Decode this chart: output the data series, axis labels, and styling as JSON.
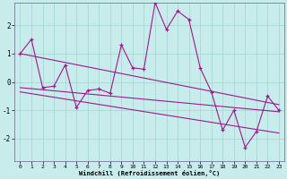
{
  "x": [
    0,
    1,
    2,
    3,
    4,
    5,
    6,
    7,
    8,
    9,
    10,
    11,
    12,
    13,
    14,
    15,
    16,
    17,
    18,
    19,
    20,
    21,
    22,
    23
  ],
  "y_main": [
    1.0,
    1.5,
    -0.2,
    -0.15,
    0.6,
    -0.9,
    -0.3,
    -0.25,
    -0.4,
    1.3,
    0.5,
    0.45,
    2.8,
    1.85,
    2.5,
    2.2,
    0.5,
    -0.35,
    -1.7,
    -1.0,
    -2.3,
    -1.75,
    -0.5,
    -1.0
  ],
  "trend1_x": [
    0,
    23
  ],
  "trend1_y": [
    1.0,
    -0.8
  ],
  "trend2_x": [
    0,
    23
  ],
  "trend2_y": [
    -0.2,
    -1.05
  ],
  "trend3_x": [
    0,
    23
  ],
  "trend3_y": [
    -0.35,
    -1.8
  ],
  "bg_color": "#c8eceb",
  "line_color": "#9b1a8c",
  "grid_color": "#a0d4d0",
  "xlabel": "Windchill (Refroidissement éolien,°C)",
  "ylim": [
    -2.8,
    2.8
  ],
  "xlim": [
    -0.5,
    23.5
  ],
  "yticks": [
    -2,
    -1,
    0,
    1,
    2
  ],
  "xticks": [
    0,
    1,
    2,
    3,
    4,
    5,
    6,
    7,
    8,
    9,
    10,
    11,
    12,
    13,
    14,
    15,
    16,
    17,
    18,
    19,
    20,
    21,
    22,
    23
  ]
}
